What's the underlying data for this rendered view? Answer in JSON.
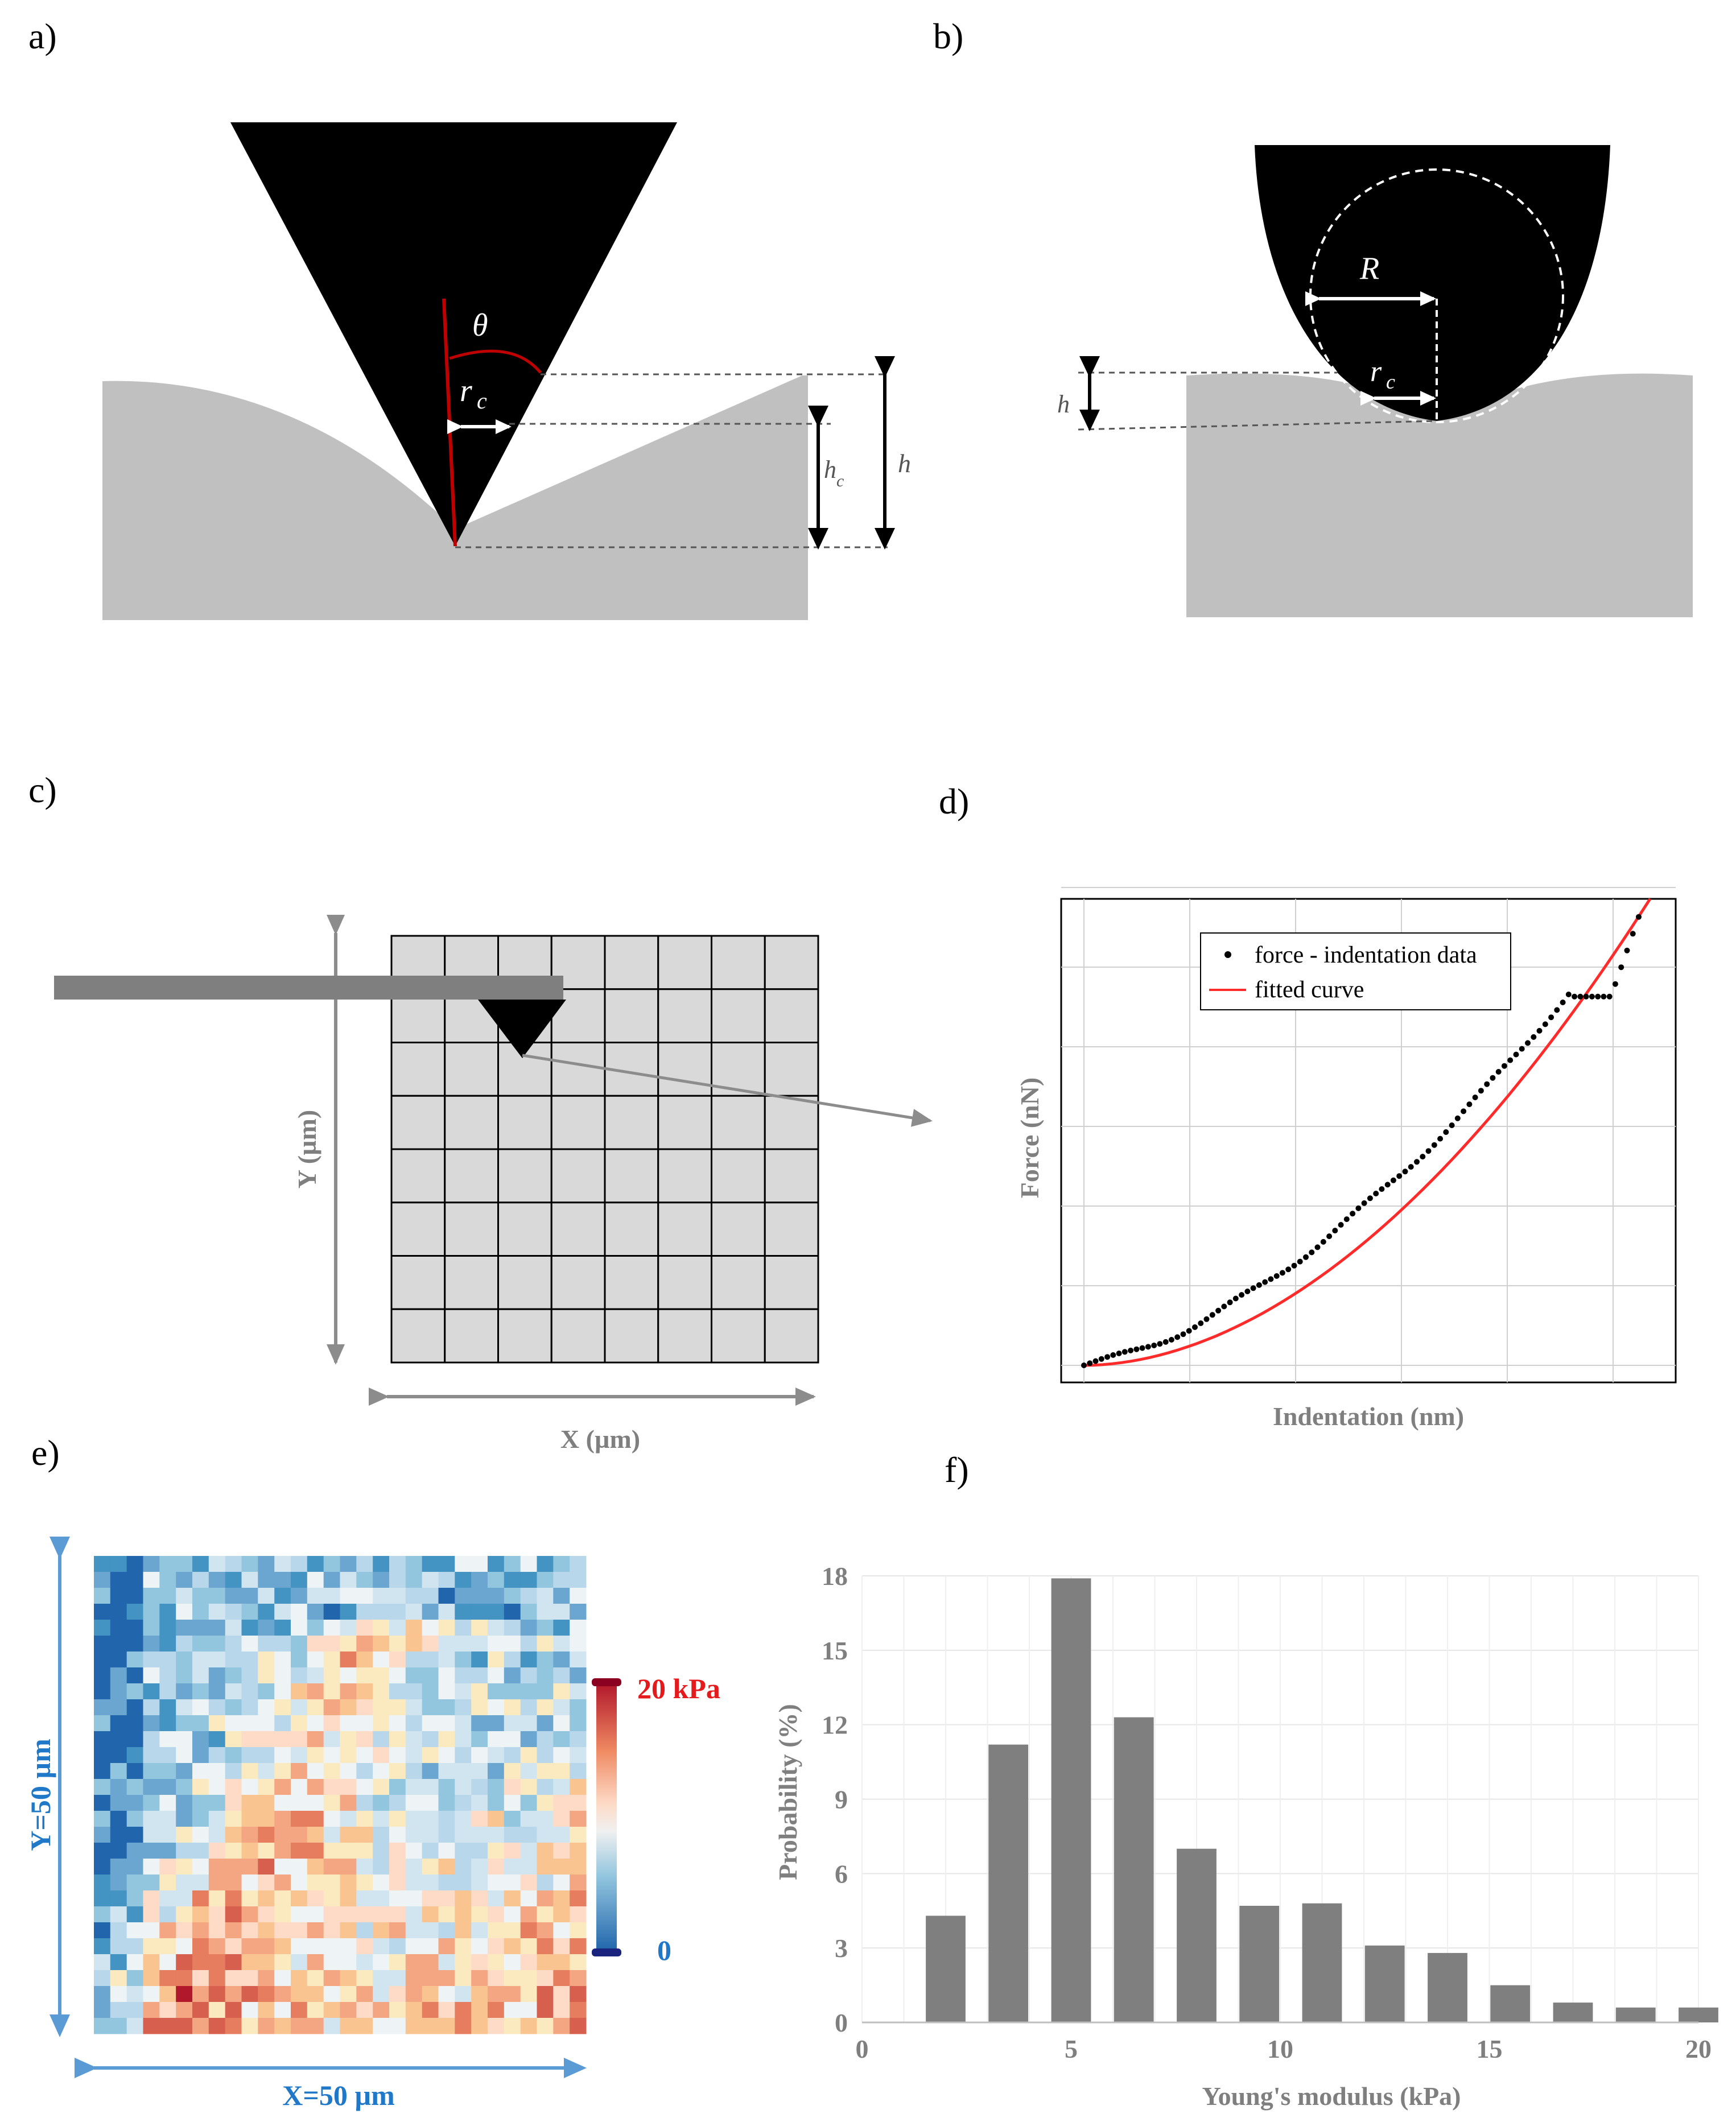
{
  "panels": {
    "a": "a)",
    "b": "b)",
    "c": "c)",
    "d": "d)",
    "e": "e)",
    "f": "f)"
  },
  "panel_a": {
    "theta": "θ",
    "rc": "r",
    "rc_sub": "c",
    "hc": "h",
    "hc_sub": "c",
    "h": "h"
  },
  "panel_b": {
    "R": "R",
    "rc": "r",
    "rc_sub": "c",
    "h": "h"
  },
  "panel_c": {
    "y_label": "Y (µm)",
    "x_label": "X (µm)",
    "grid_cols": 8,
    "grid_rows": 8
  },
  "panel_d": {
    "y_label": "Force (nN)",
    "x_label": "Indentation (nm)",
    "legend": [
      "force - indentation data",
      "fitted curve"
    ],
    "colors": {
      "data": "#000000",
      "fit": "#ff2a2a"
    }
  },
  "panel_e": {
    "colorbar_max": "20 kPa",
    "colorbar_min": "0",
    "y_label": "Y=50 µm",
    "x_label": "X=50 µm",
    "colors": {
      "max": "#b2182b",
      "min": "#2166ac",
      "label_blue": "#1f78c8",
      "label_red": "#e41a1c"
    }
  },
  "chart_data": {
    "type": "bar",
    "x": [
      2,
      3.5,
      5,
      6.5,
      8,
      9.5,
      11,
      12.5,
      14,
      15.5,
      17,
      18.5,
      20
    ],
    "values": [
      4.3,
      11.2,
      17.9,
      12.3,
      7.0,
      4.7,
      4.8,
      3.1,
      2.8,
      1.5,
      0.8,
      0.6,
      0.6
    ],
    "xlabel": "Young's modulus (kPa)",
    "ylabel": "Probability (%)",
    "xlim": [
      0,
      20
    ],
    "ylim": [
      0,
      18
    ],
    "xticks": [
      "0",
      "5",
      "10",
      "15",
      "20"
    ],
    "yticks": [
      "0",
      "3",
      "6",
      "9",
      "12",
      "15",
      "18"
    ],
    "bar_color": "#7f7f7f",
    "grid": true
  }
}
